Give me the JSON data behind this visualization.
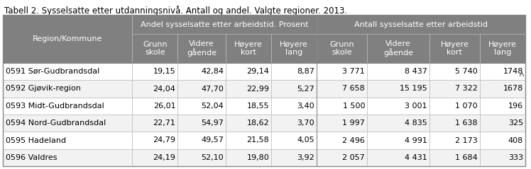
{
  "title": "Tabell 2. Sysselsatte etter utdanningsnivå. Antall og andel. Valgte regioner. 2013.",
  "header_group1": "Andel sysselsatte etter arbeidstid. Prosent",
  "header_group2": "Antall sysselsatte etter arbeidstid",
  "col_header_region": "Region/Kommune",
  "col_headers": [
    "Grunn\nskole",
    "Videre\ngående",
    "Høyere\nkort",
    "Høyere\nlang",
    "Grunn\nskole",
    "Videre\ngående",
    "Høyere\nkort",
    "Høyere\nlang"
  ],
  "rows": [
    [
      "0591 Sør-Gudbrandsdal",
      "19,15",
      "42,84",
      "29,14",
      "8,87",
      "3 771",
      "8 437",
      "5 740",
      "1748"
    ],
    [
      "0592 Gjøvik-region",
      "24,04",
      "47,70",
      "22,99",
      "5,27",
      "7 658",
      "15 195",
      "7 322",
      "1678"
    ],
    [
      "0593 Midt-Gudbrandsdal",
      "26,01",
      "52,04",
      "18,55",
      "3,40",
      "1 500",
      "3 001",
      "1 070",
      "196"
    ],
    [
      "0594 Nord-Gudbrandsdal",
      "22,71",
      "54,97",
      "18,62",
      "3,70",
      "1 997",
      "4 835",
      "1 638",
      "325"
    ],
    [
      "0595 Hadeland",
      "24,79",
      "49,57",
      "21,58",
      "4,05",
      "2 496",
      "4 991",
      "2 173",
      "408"
    ],
    [
      "0596 Valdres",
      "24,19",
      "52,10",
      "19,80",
      "3,92",
      "2 057",
      "4 431",
      "1 684",
      "333"
    ]
  ],
  "header_bg": "#808080",
  "header_fg": "#ffffff",
  "row_bg_white": "#ffffff",
  "row_bg_gray": "#f2f2f2",
  "border_color_outer": "#888888",
  "border_color_inner": "#bbbbbb",
  "title_color": "#000000",
  "title_fontsize": 8.5,
  "cell_fontsize": 8.0,
  "header_fontsize": 8.0,
  "col_widths_rel": [
    2.7,
    0.95,
    1.0,
    0.95,
    0.95,
    1.05,
    1.3,
    1.05,
    0.95
  ],
  "scroll_arrow_color": "#555555"
}
